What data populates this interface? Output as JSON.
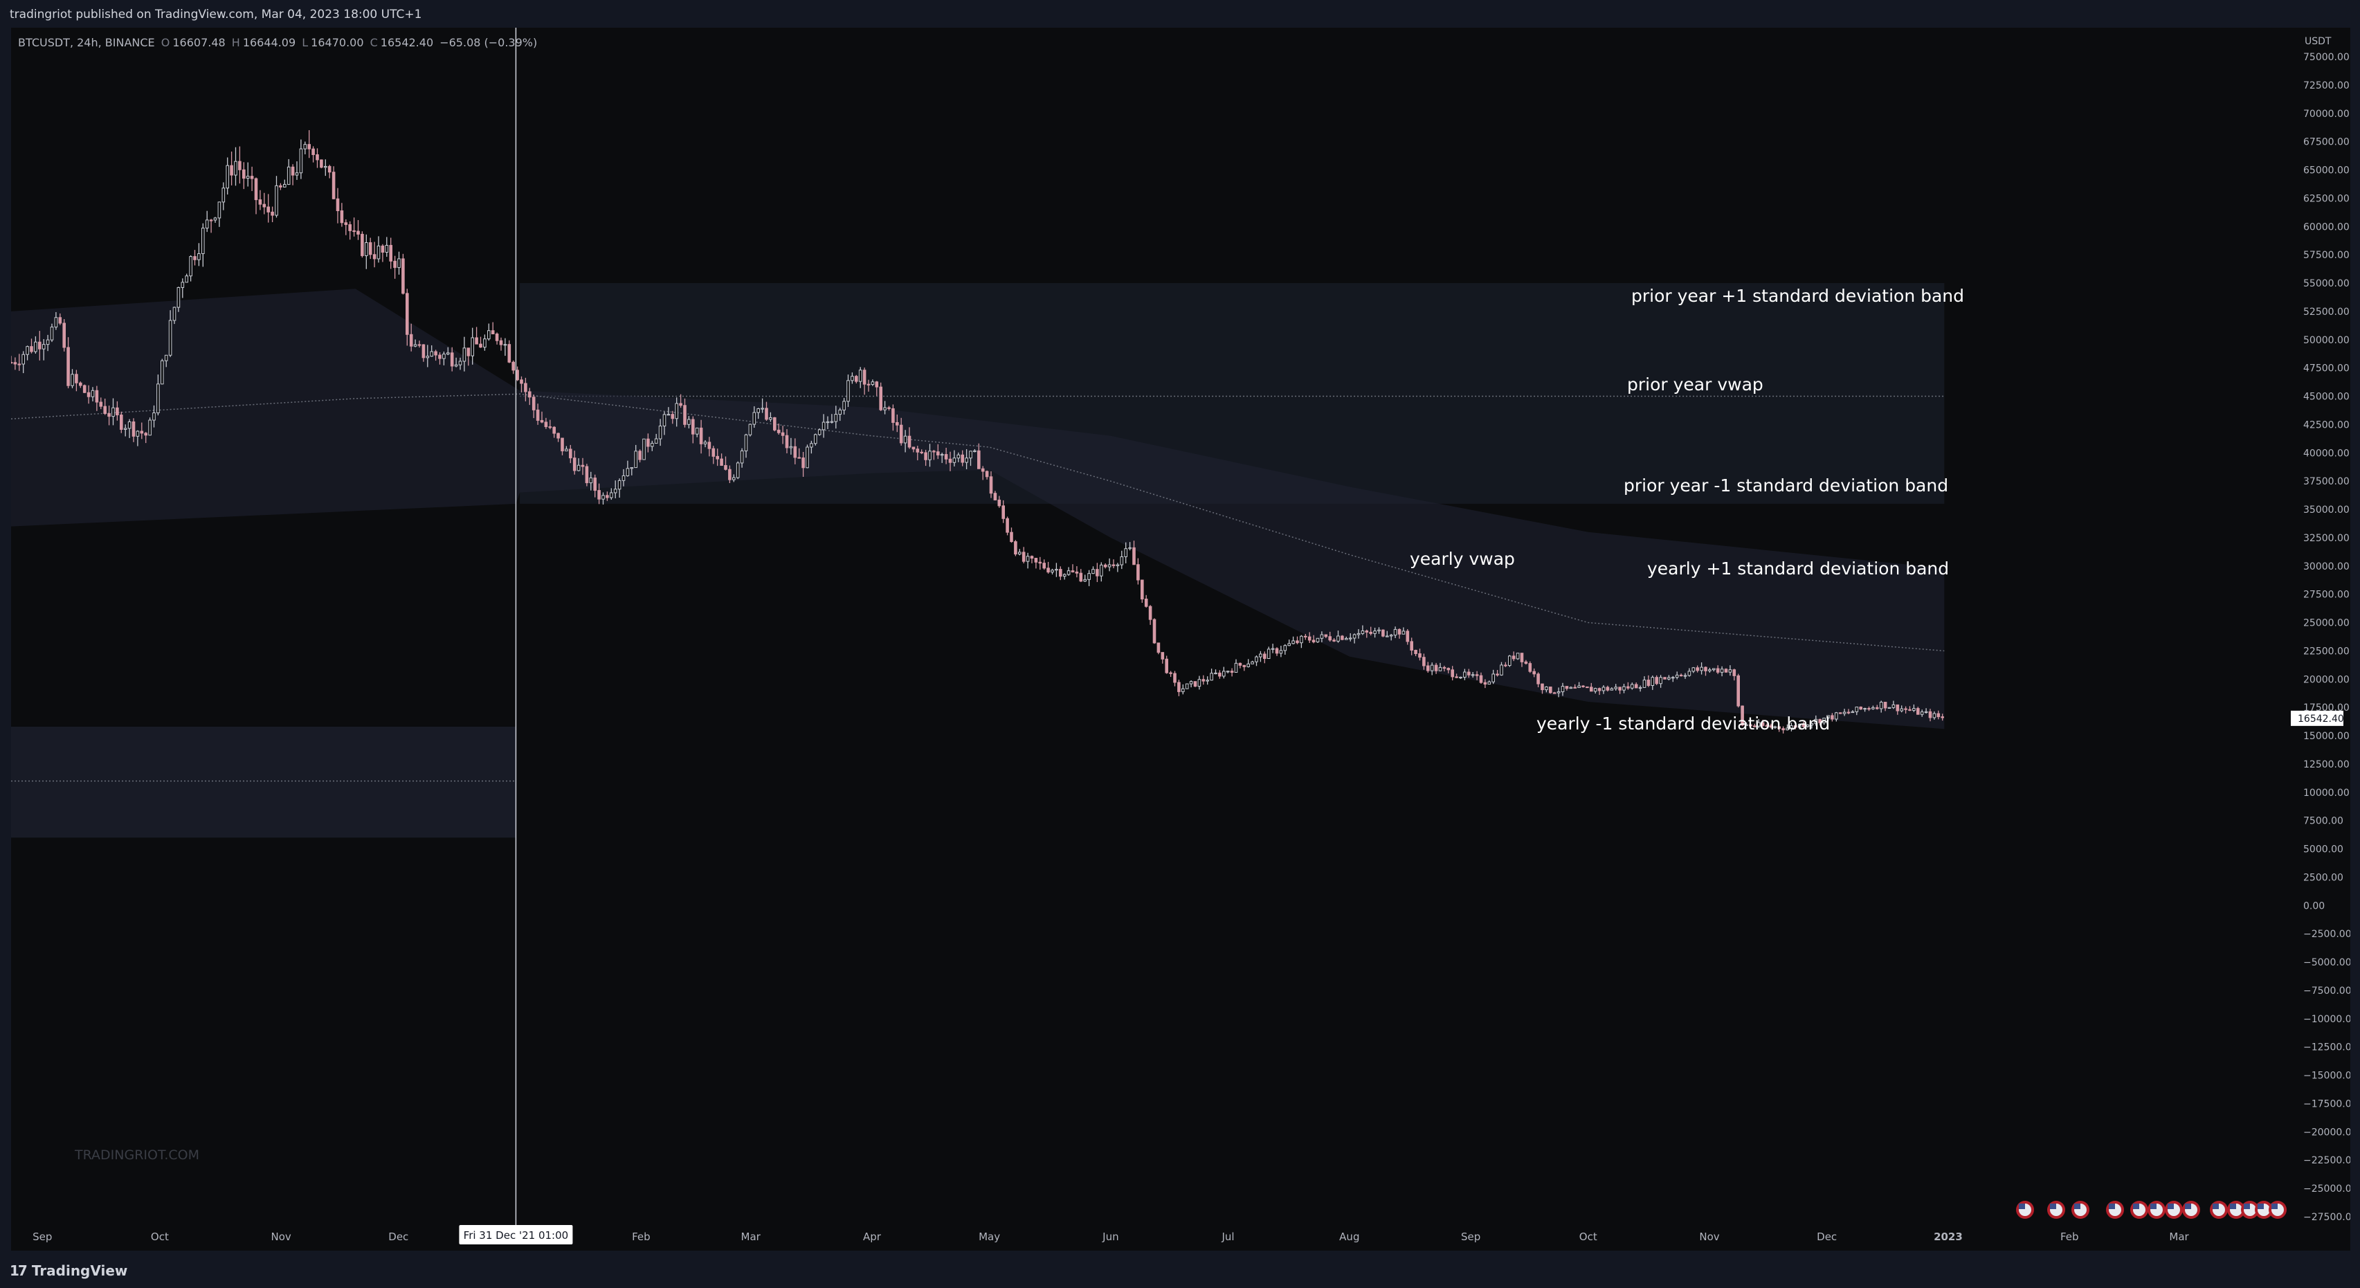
{
  "header": {
    "publisher_line": "tradingriot published on TradingView.com, Mar 04, 2023 18:00 UTC+1"
  },
  "legend": {
    "symbol": "BTCUSDT, 24h, BINANCE",
    "open_label": "O",
    "open": "16607.48",
    "high_label": "H",
    "high": "16644.09",
    "low_label": "L",
    "low": "16470.00",
    "close_label": "C",
    "close": "16542.40",
    "change": "−65.08 (−0.39%)"
  },
  "watermark": "TRADINGRIOT.COM",
  "footer": {
    "brand": "TradingView",
    "brand_mark": "17"
  },
  "colors": {
    "background": "#0b0c0e",
    "frame": "#131722",
    "candle": "#c9ccd3",
    "candle_down": "#d69aa6",
    "band": "#1e2230",
    "label_bg": "#ffffff"
  },
  "chart_data": {
    "type": "candlestick",
    "symbol": "BTCUSDT",
    "interval": "24h",
    "exchange": "BINANCE",
    "currency_label": "USDT",
    "y_range": [
      -27500,
      75000
    ],
    "y_ticks": [
      "75000.00",
      "72500.00",
      "70000.00",
      "67500.00",
      "65000.00",
      "62500.00",
      "60000.00",
      "57500.00",
      "55000.00",
      "52500.00",
      "50000.00",
      "47500.00",
      "45000.00",
      "42500.00",
      "40000.00",
      "37500.00",
      "35000.00",
      "32500.00",
      "30000.00",
      "27500.00",
      "25000.00",
      "22500.00",
      "20000.00",
      "17500.00",
      "15000.00",
      "12500.00",
      "10000.00",
      "7500.00",
      "5000.00",
      "2500.00",
      "0.00",
      "−2500.00",
      "−5000.00",
      "−7500.00",
      "−10000.00",
      "−12500.00",
      "−15000.00",
      "−17500.00",
      "−20000.00",
      "−22500.00",
      "−25000.00",
      "−27500.00"
    ],
    "x_ticks": [
      "Sep",
      "Oct",
      "Nov",
      "Dec",
      "Feb",
      "Mar",
      "Apr",
      "May",
      "Jun",
      "Jul",
      "Aug",
      "Sep",
      "Oct",
      "Nov",
      "Dec",
      "2023",
      "Feb",
      "Mar"
    ],
    "crosshair_label": "Fri 31 Dec '21   01:00",
    "last_price": "16542.40",
    "annotations": {
      "prior_upper": "prior year +1 standard deviation band",
      "prior_vwap": "prior year vwap",
      "prior_lower": "prior year -1 standard deviation band",
      "yearly_vwap": "yearly vwap",
      "yearly_upper": "yearly +1 standard deviation band",
      "yearly_lower": "yearly -1 standard deviation band"
    },
    "price_path": [
      [
        "2021-08-24",
        48000
      ],
      [
        "2021-09-06",
        51500
      ],
      [
        "2021-09-07",
        46800
      ],
      [
        "2021-09-20",
        43000
      ],
      [
        "2021-09-28",
        41500
      ],
      [
        "2021-10-06",
        55000
      ],
      [
        "2021-10-15",
        61500
      ],
      [
        "2021-10-20",
        66000
      ],
      [
        "2021-10-28",
        61000
      ],
      [
        "2021-11-09",
        67500
      ],
      [
        "2021-11-20",
        58500
      ],
      [
        "2021-12-01",
        57000
      ],
      [
        "2021-12-04",
        49000
      ],
      [
        "2021-12-15",
        48500
      ],
      [
        "2021-12-27",
        50500
      ],
      [
        "2022-01-05",
        43500
      ],
      [
        "2022-01-22",
        36000
      ],
      [
        "2022-02-10",
        44000
      ],
      [
        "2022-02-24",
        37500
      ],
      [
        "2022-03-02",
        44300
      ],
      [
        "2022-03-14",
        39000
      ],
      [
        "2022-03-29",
        47500
      ],
      [
        "2022-04-11",
        40000
      ],
      [
        "2022-04-28",
        39500
      ],
      [
        "2022-05-09",
        30500
      ],
      [
        "2022-05-26",
        29000
      ],
      [
        "2022-06-06",
        31300
      ],
      [
        "2022-06-13",
        22500
      ],
      [
        "2022-06-18",
        19000
      ],
      [
        "2022-07-08",
        21800
      ],
      [
        "2022-07-20",
        23500
      ],
      [
        "2022-08-14",
        24300
      ],
      [
        "2022-08-20",
        21200
      ],
      [
        "2022-09-05",
        19800
      ],
      [
        "2022-09-13",
        22400
      ],
      [
        "2022-09-20",
        19000
      ],
      [
        "2022-10-10",
        19200
      ],
      [
        "2022-10-28",
        20800
      ],
      [
        "2022-11-07",
        20900
      ],
      [
        "2022-11-09",
        16000
      ],
      [
        "2022-11-21",
        15700
      ],
      [
        "2022-12-15",
        17800
      ],
      [
        "2022-12-31",
        16542
      ]
    ],
    "prior_year_bands": {
      "period": [
        "2022-01-01",
        "2022-12-31"
      ],
      "upper": 55000,
      "vwap": 45000,
      "lower": 35500
    },
    "yearly_bands": {
      "vwap": [
        [
          "2021-08-24",
          43000
        ],
        [
          "2021-11-20",
          44800
        ],
        [
          "2022-01-01",
          45200
        ],
        [
          "2022-04-01",
          41500
        ],
        [
          "2022-05-01",
          40500
        ],
        [
          "2022-06-01",
          37500
        ],
        [
          "2022-08-01",
          31000
        ],
        [
          "2022-10-01",
          25000
        ],
        [
          "2022-12-31",
          22500
        ]
      ],
      "upper": [
        [
          "2021-08-24",
          52500
        ],
        [
          "2021-11-20",
          54500
        ],
        [
          "2022-01-01",
          45500
        ],
        [
          "2022-04-01",
          44000
        ],
        [
          "2022-06-01",
          41500
        ],
        [
          "2022-08-01",
          37000
        ],
        [
          "2022-10-01",
          33000
        ],
        [
          "2022-12-31",
          29800
        ]
      ],
      "lower": [
        [
          "2021-08-24",
          33500
        ],
        [
          "2021-12-31",
          35500
        ],
        [
          "2022-01-01",
          36500
        ],
        [
          "2022-04-01",
          38200
        ],
        [
          "2022-05-01",
          38500
        ],
        [
          "2022-06-01",
          32500
        ],
        [
          "2022-08-01",
          22000
        ],
        [
          "2022-10-01",
          18000
        ],
        [
          "2022-12-31",
          15600
        ]
      ]
    },
    "previous_year_band_segment": {
      "period": [
        "2021-08-24",
        "2021-12-31"
      ],
      "upper": 15800,
      "vwap": 11000,
      "lower": 6000
    },
    "grid": false,
    "legend_position": "top-left"
  }
}
